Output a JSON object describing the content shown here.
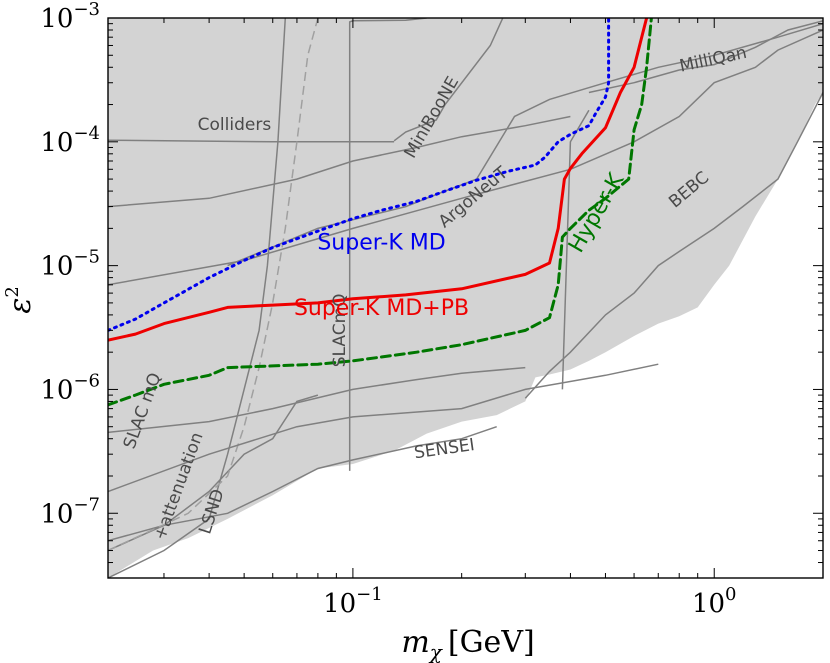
{
  "chart_data": {
    "type": "line",
    "title": "",
    "xscale": "log",
    "yscale": "log",
    "xlim": [
      0.021,
      2.0
    ],
    "ylim": [
      3e-08,
      0.001
    ],
    "xlabel_math": "m",
    "xlabel_sub": "χ",
    "xlabel_unit": "[GeV]",
    "ylabel_math": "ε",
    "ylabel_sup": "2",
    "xticks": [
      {
        "value": 0.1,
        "base": "10",
        "exp": "−1"
      },
      {
        "value": 1.0,
        "base": "10",
        "exp": "0"
      }
    ],
    "yticks": [
      {
        "value": 1e-07,
        "base": "10",
        "exp": "−7"
      },
      {
        "value": 1e-06,
        "base": "10",
        "exp": "−6"
      },
      {
        "value": 1e-05,
        "base": "10",
        "exp": "−5"
      },
      {
        "value": 0.0001,
        "base": "10",
        "exp": "−4"
      },
      {
        "value": 0.001,
        "base": "10",
        "exp": "−3"
      }
    ],
    "excluded_fill": "#d3d3d3",
    "excluded_region_upper": [
      [
        0.021,
        0.001
      ],
      [
        2.0,
        0.001
      ]
    ],
    "excluded_region_lower": [
      [
        0.021,
        3e-08
      ],
      [
        0.028,
        5e-08
      ],
      [
        0.035,
        6.3e-08
      ],
      [
        0.045,
        9e-08
      ],
      [
        0.06,
        1.4e-07
      ],
      [
        0.08,
        2.3e-07
      ],
      [
        0.1,
        2.5e-07
      ],
      [
        0.13,
        3.2e-07
      ],
      [
        0.16,
        4.4e-07
      ],
      [
        0.2,
        5.5e-07
      ],
      [
        0.25,
        6.2e-07
      ],
      [
        0.3,
        8e-07
      ],
      [
        0.32,
        1.25e-06
      ],
      [
        0.35,
        1.32e-06
      ],
      [
        0.4,
        1.45e-06
      ],
      [
        0.45,
        1.7e-06
      ],
      [
        0.5,
        2e-06
      ],
      [
        0.6,
        2.7e-06
      ],
      [
        0.7,
        3.4e-06
      ],
      [
        0.8,
        3.9e-06
      ],
      [
        0.9,
        4.6e-06
      ],
      [
        1.0,
        7e-06
      ],
      [
        1.1,
        1e-05
      ],
      [
        1.3,
        2.5e-05
      ],
      [
        1.5,
        5e-05
      ],
      [
        1.7,
        0.0001
      ],
      [
        1.9,
        0.0002
      ],
      [
        2.0,
        0.00025
      ]
    ],
    "series": [
      {
        "name": "Super-K MD",
        "role": "sensitivity",
        "color": "#0000ee",
        "dash": "dotted",
        "points": [
          [
            0.021,
            3e-06
          ],
          [
            0.025,
            3.7e-06
          ],
          [
            0.03,
            5e-06
          ],
          [
            0.04,
            8e-06
          ],
          [
            0.05,
            1.1e-05
          ],
          [
            0.06,
            1.4e-05
          ],
          [
            0.08,
            1.9e-05
          ],
          [
            0.1,
            2.4e-05
          ],
          [
            0.12,
            2.8e-05
          ],
          [
            0.15,
            3.3e-05
          ],
          [
            0.18,
            4e-05
          ],
          [
            0.22,
            4.9e-05
          ],
          [
            0.27,
            5.8e-05
          ],
          [
            0.32,
            6.5e-05
          ],
          [
            0.34,
            7.5e-05
          ],
          [
            0.37,
            0.0001
          ],
          [
            0.4,
            0.000115
          ],
          [
            0.45,
            0.000135
          ],
          [
            0.47,
            0.00017
          ],
          [
            0.5,
            0.00023
          ],
          [
            0.51,
            0.0003
          ],
          [
            0.51,
            0.001
          ]
        ]
      },
      {
        "name": "Super-K MD+PB",
        "role": "sensitivity",
        "color": "#ee0000",
        "dash": "solid",
        "points": [
          [
            0.021,
            2.5e-06
          ],
          [
            0.025,
            2.8e-06
          ],
          [
            0.03,
            3.4e-06
          ],
          [
            0.04,
            4.2e-06
          ],
          [
            0.045,
            4.6e-06
          ],
          [
            0.06,
            4.8e-06
          ],
          [
            0.08,
            5e-06
          ],
          [
            0.1,
            5.4e-06
          ],
          [
            0.14,
            5.8e-06
          ],
          [
            0.2,
            6.5e-06
          ],
          [
            0.3,
            8.5e-06
          ],
          [
            0.35,
            1.05e-05
          ],
          [
            0.37,
            2e-05
          ],
          [
            0.385,
            5e-05
          ],
          [
            0.4,
            6.1e-05
          ],
          [
            0.43,
            8e-05
          ],
          [
            0.5,
            0.00013
          ],
          [
            0.55,
            0.00025
          ],
          [
            0.6,
            0.0004
          ],
          [
            0.63,
            0.0007
          ],
          [
            0.65,
            0.001
          ]
        ]
      },
      {
        "name": "Hyper-K",
        "role": "sensitivity",
        "color": "#007700",
        "dash": "dashed",
        "points": [
          [
            0.021,
            7.5e-07
          ],
          [
            0.025,
            9e-07
          ],
          [
            0.03,
            1.1e-06
          ],
          [
            0.04,
            1.3e-06
          ],
          [
            0.045,
            1.5e-06
          ],
          [
            0.06,
            1.55e-06
          ],
          [
            0.08,
            1.6e-06
          ],
          [
            0.1,
            1.7e-06
          ],
          [
            0.15,
            2e-06
          ],
          [
            0.2,
            2.3e-06
          ],
          [
            0.3,
            3e-06
          ],
          [
            0.35,
            3.8e-06
          ],
          [
            0.37,
            7e-06
          ],
          [
            0.38,
            1.7e-05
          ],
          [
            0.4,
            2e-05
          ],
          [
            0.45,
            2.8e-05
          ],
          [
            0.5,
            3.5e-05
          ],
          [
            0.58,
            5e-05
          ],
          [
            0.6,
            0.000125
          ],
          [
            0.63,
            0.0002
          ],
          [
            0.65,
            0.0004
          ],
          [
            0.67,
            0.001
          ]
        ]
      }
    ],
    "constraint_lines": [
      {
        "name": "Colliders",
        "color": "#808080",
        "dash": "solid",
        "points": [
          [
            0.021,
            0.000103
          ],
          [
            0.06,
            0.0001
          ],
          [
            0.09,
            0.0001
          ],
          [
            0.13,
            0.0001
          ]
        ]
      },
      {
        "name": "Colliders-2",
        "color": "#808080",
        "dash": "solid",
        "points": [
          [
            0.021,
            3e-05
          ],
          [
            0.04,
            3.5e-05
          ],
          [
            0.07,
            5e-05
          ],
          [
            0.1,
            7e-05
          ],
          [
            0.15,
            9e-05
          ],
          [
            0.2,
            0.00011
          ],
          [
            0.3,
            0.000135
          ],
          [
            0.4,
            0.00016
          ]
        ]
      },
      {
        "name": "Colliders-3",
        "color": "#808080",
        "dash": "solid",
        "points": [
          [
            0.021,
            7e-06
          ],
          [
            0.05,
            1.1e-05
          ],
          [
            0.1,
            2e-05
          ],
          [
            0.2,
            3.5e-05
          ],
          [
            0.4,
            6e-05
          ],
          [
            0.6,
            0.0001
          ],
          [
            0.8,
            0.00016
          ],
          [
            1.0,
            0.0003
          ],
          [
            1.3,
            0.0004
          ],
          [
            1.5,
            0.00055
          ],
          [
            2.0,
            0.0008
          ]
        ]
      },
      {
        "name": "MiniBooNE",
        "color": "#808080",
        "dash": "solid",
        "points": [
          [
            0.13,
            0.000102
          ],
          [
            0.14,
            0.00012
          ],
          [
            0.17,
            0.00015
          ],
          [
            0.18,
            0.0002
          ],
          [
            0.24,
            0.0006
          ],
          [
            0.26,
            0.001
          ]
        ]
      },
      {
        "name": "ArgoNeuT",
        "color": "#808080",
        "dash": "solid",
        "points": [
          [
            0.045,
            1e-05
          ],
          [
            0.08,
            2e-05
          ],
          [
            0.14,
            3e-05
          ],
          [
            0.18,
            4e-05
          ],
          [
            0.22,
            5e-05
          ],
          [
            0.28,
            0.00016
          ],
          [
            0.35,
            0.00022
          ],
          [
            0.5,
            0.0003
          ],
          [
            0.7,
            0.0004
          ],
          [
            1.0,
            0.0005
          ],
          [
            1.5,
            0.0007
          ],
          [
            2.0,
            0.0009
          ]
        ]
      },
      {
        "name": "MilliQan",
        "color": "#808080",
        "dash": "solid",
        "points": [
          [
            0.45,
            0.00025
          ],
          [
            0.6,
            0.0003
          ],
          [
            0.8,
            0.00038
          ],
          [
            1.0,
            0.00042
          ],
          [
            1.3,
            0.00058
          ],
          [
            1.6,
            0.0008
          ],
          [
            2.0,
            0.00095
          ]
        ]
      },
      {
        "name": "SLACmQ-vertical",
        "color": "#808080",
        "dash": "solid",
        "points": [
          [
            0.098,
            2.2e-07
          ],
          [
            0.098,
            0.00093
          ],
          [
            0.1,
            0.00095
          ],
          [
            0.14,
            0.00096
          ],
          [
            0.16,
            0.001
          ]
        ]
      },
      {
        "name": "SLACmQ-lower",
        "color": "#808080",
        "dash": "solid",
        "points": [
          [
            0.021,
            4.5e-07
          ],
          [
            0.04,
            5.5e-07
          ],
          [
            0.06,
            7e-07
          ],
          [
            0.1,
            1e-06
          ],
          [
            0.15,
            1.2e-06
          ],
          [
            0.2,
            1.35e-06
          ],
          [
            0.3,
            1.5e-06
          ]
        ]
      },
      {
        "name": "LSND",
        "color": "#808080",
        "dash": "solid",
        "points": [
          [
            0.021,
            3e-08
          ],
          [
            0.03,
            5e-08
          ],
          [
            0.04,
            9e-08
          ],
          [
            0.045,
            3e-07
          ],
          [
            0.05,
            1e-06
          ],
          [
            0.055,
            3e-06
          ],
          [
            0.058,
            1e-05
          ],
          [
            0.062,
            0.0001
          ],
          [
            0.065,
            0.001
          ]
        ]
      },
      {
        "name": "SLACmQ+attenuation-left",
        "color": "#808080",
        "dash": "solid",
        "points": [
          [
            0.021,
            5e-08
          ],
          [
            0.03,
            8e-08
          ],
          [
            0.04,
            1.5e-07
          ],
          [
            0.05,
            3e-07
          ],
          [
            0.06,
            4e-07
          ],
          [
            0.07,
            8e-07
          ],
          [
            0.08,
            9e-07
          ]
        ]
      },
      {
        "name": "SENSEI",
        "color": "#808080",
        "dash": "solid",
        "points": [
          [
            0.021,
            6e-08
          ],
          [
            0.03,
            8e-08
          ],
          [
            0.045,
            1e-07
          ],
          [
            0.06,
            1.5e-07
          ],
          [
            0.08,
            2.3e-07
          ],
          [
            0.1,
            2.7e-07
          ],
          [
            0.15,
            3.5e-07
          ],
          [
            0.2,
            4e-07
          ],
          [
            0.25,
            5e-07
          ]
        ]
      },
      {
        "name": "BEBC",
        "color": "#808080",
        "dash": "solid",
        "points": [
          [
            0.3,
            8.5e-07
          ],
          [
            0.35,
            1.4e-06
          ],
          [
            0.4,
            2e-06
          ],
          [
            0.5,
            4e-06
          ],
          [
            0.6,
            6e-06
          ],
          [
            0.7,
            1e-05
          ],
          [
            0.8,
            1.3e-05
          ],
          [
            1.0,
            2e-05
          ],
          [
            1.2,
            3e-05
          ],
          [
            1.5,
            5e-05
          ],
          [
            1.7,
            0.0001
          ],
          [
            2.0,
            0.00025
          ]
        ]
      },
      {
        "name": "BEBC-2",
        "color": "#808080",
        "dash": "solid",
        "points": [
          [
            0.38,
            1e-06
          ],
          [
            0.4,
            0.0001
          ],
          [
            0.45,
            0.00018
          ]
        ]
      },
      {
        "name": "SLAC-dashed",
        "color": "#a0a0a0",
        "dash": "dashed",
        "points": [
          [
            0.021,
            5e-08
          ],
          [
            0.035,
            1e-07
          ],
          [
            0.045,
            2e-07
          ],
          [
            0.05,
            5e-07
          ],
          [
            0.055,
            1.5e-06
          ],
          [
            0.06,
            5e-06
          ],
          [
            0.065,
            2e-05
          ],
          [
            0.07,
            0.0001
          ],
          [
            0.075,
            0.0005
          ],
          [
            0.08,
            0.001
          ]
        ]
      },
      {
        "name": "SLACmQ-line2",
        "color": "#808080",
        "dash": "solid",
        "points": [
          [
            0.021,
            1.5e-07
          ],
          [
            0.04,
            3e-07
          ],
          [
            0.07,
            5e-07
          ],
          [
            0.1,
            6e-07
          ],
          [
            0.2,
            7e-07
          ],
          [
            0.3,
            1e-06
          ],
          [
            0.5,
            1.3e-06
          ],
          [
            0.7,
            1.6e-06
          ]
        ]
      }
    ],
    "region_labels": [
      {
        "text": "Colliders",
        "x": 0.047,
        "y": 0.000125,
        "rotation": 0
      },
      {
        "text": "MiniBooNE",
        "x": 0.17,
        "y": 0.00015,
        "rotation": -60
      },
      {
        "text": "ArgoNeuT",
        "x": 0.22,
        "y": 3.3e-05,
        "rotation": -40
      },
      {
        "text": "MilliQan",
        "x": 1.0,
        "y": 0.00042,
        "rotation": -12
      },
      {
        "text": "BEBC",
        "x": 0.87,
        "y": 3.8e-05,
        "rotation": -40
      },
      {
        "text": "SENSEI",
        "x": 0.18,
        "y": 3e-07,
        "rotation": -8
      },
      {
        "text": "SLACmQ",
        "x": 0.095,
        "y": 3e-06,
        "rotation": -90
      },
      {
        "text": "LSND",
        "x": 0.042,
        "y": 1e-07,
        "rotation": -72
      },
      {
        "text": "SLAC mQ",
        "x": 0.027,
        "y": 6.5e-07,
        "rotation": -70
      },
      {
        "text": "+attenuation",
        "x": 0.034,
        "y": 1.6e-07,
        "rotation": -70
      }
    ],
    "curve_labels": [
      {
        "text": "Super-K MD",
        "x": 0.12,
        "y": 1.35e-05,
        "color": "#0000ee",
        "rotation": 0
      },
      {
        "text": "Super-K MD+PB",
        "x": 0.12,
        "y": 4e-06,
        "color": "#ee0000",
        "rotation": 0
      },
      {
        "text": "Hyper-K",
        "x": 0.49,
        "y": 2.5e-05,
        "color": "#007700",
        "rotation": -60
      }
    ]
  }
}
